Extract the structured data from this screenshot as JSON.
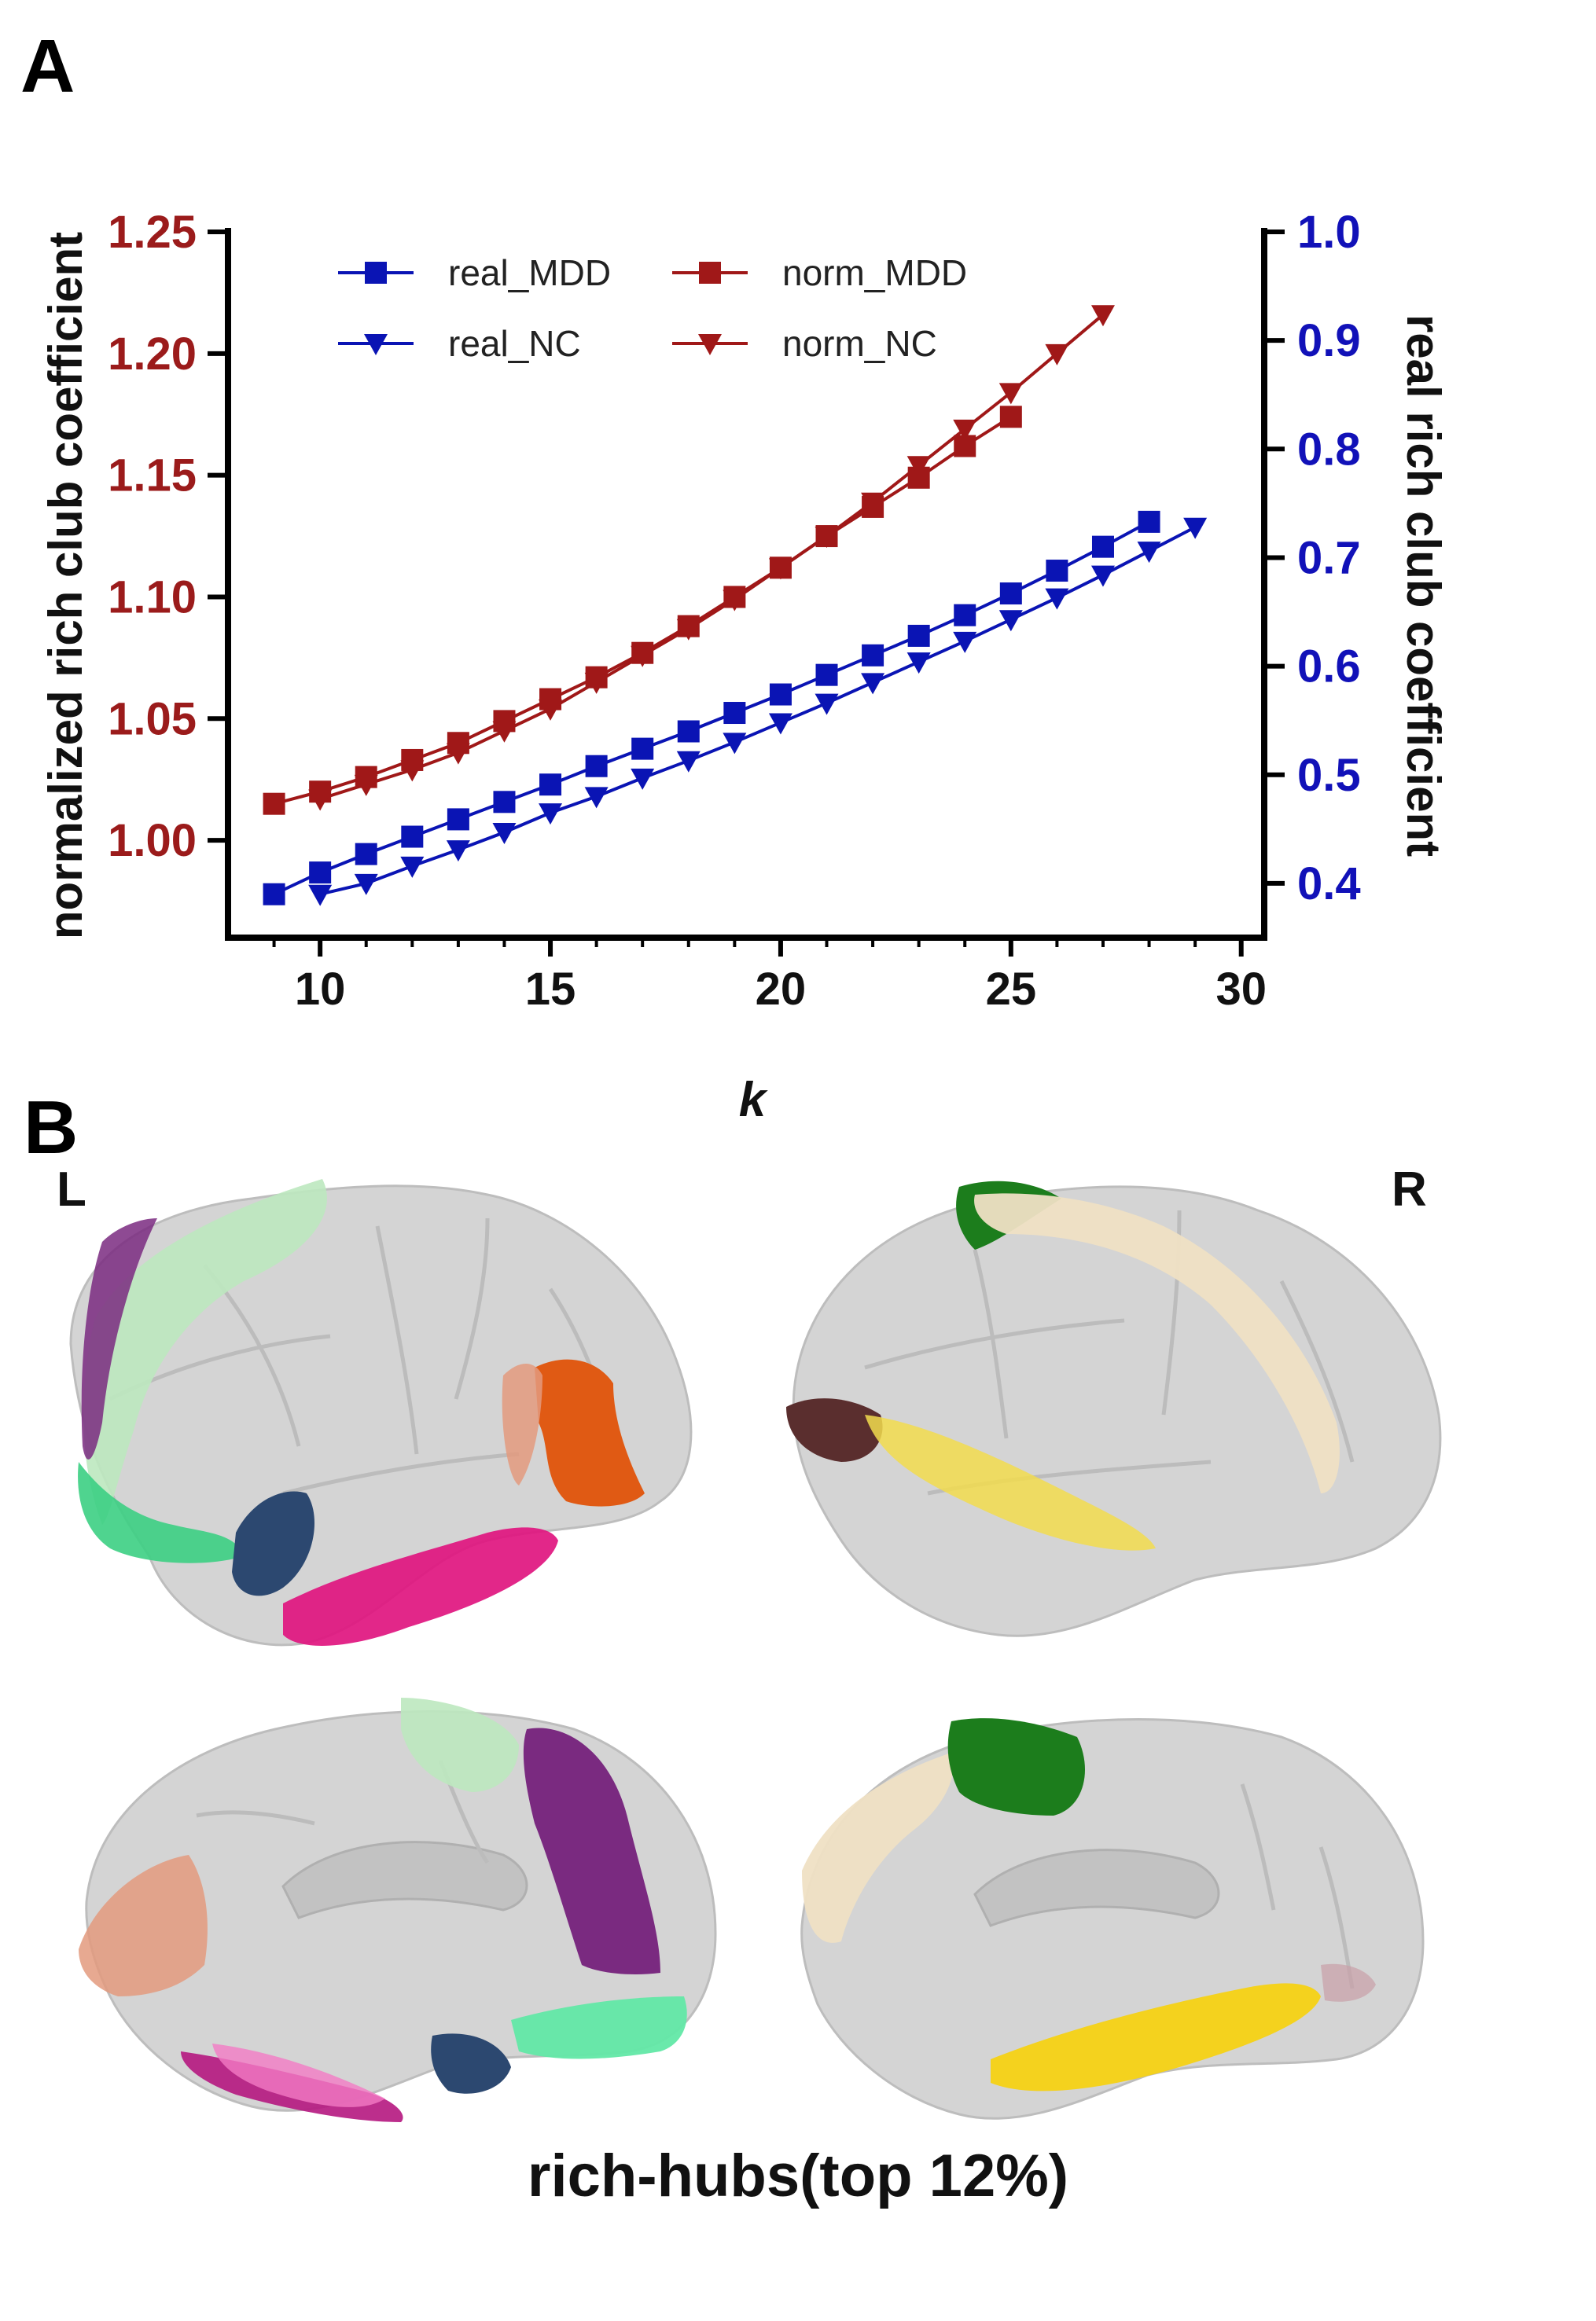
{
  "panel_a_label": "A",
  "panel_b_label": "B",
  "chart_data": {
    "type": "line",
    "xlabel": "k",
    "ylabel_left": "normalized rich club coefficient",
    "ylabel_right": "real rich club coefficient",
    "xlim": [
      8,
      30.5
    ],
    "xticks": [
      "10",
      "15",
      "20",
      "25",
      "30"
    ],
    "ylim_left": [
      0.96,
      1.25
    ],
    "yticks_left": [
      "1.00",
      "1.05",
      "1.10",
      "1.15",
      "1.20",
      "1.25"
    ],
    "ylim_right": [
      0.35,
      1.0
    ],
    "yticks_right": [
      "0.4",
      "0.5",
      "0.6",
      "0.7",
      "0.8",
      "0.9",
      "1.0"
    ],
    "left_color": "#9b1b1b",
    "right_color": "#1111b8",
    "legend": [
      "real_MDD",
      "real_NC",
      "norm_MDD",
      "norm_NC"
    ],
    "series": [
      {
        "name": "real_MDD",
        "axis": "right",
        "marker": "square",
        "color": "#0a14b4",
        "x": [
          9,
          10,
          11,
          12,
          13,
          14,
          15,
          16,
          17,
          18,
          19,
          20,
          21,
          22,
          23,
          24,
          25,
          26,
          27,
          28
        ],
        "values": [
          0.39,
          0.41,
          0.427,
          0.443,
          0.459,
          0.475,
          0.491,
          0.508,
          0.524,
          0.54,
          0.557,
          0.574,
          0.592,
          0.61,
          0.628,
          0.647,
          0.667,
          0.688,
          0.71,
          0.733
        ]
      },
      {
        "name": "real_NC",
        "axis": "right",
        "marker": "triangle-down",
        "color": "#0a14b4",
        "x": [
          10,
          11,
          12,
          13,
          14,
          15,
          16,
          17,
          18,
          19,
          20,
          21,
          22,
          23,
          24,
          25,
          26,
          27,
          28,
          29
        ],
        "values": [
          0.39,
          0.4,
          0.416,
          0.431,
          0.447,
          0.465,
          0.48,
          0.497,
          0.513,
          0.53,
          0.548,
          0.566,
          0.585,
          0.604,
          0.623,
          0.643,
          0.663,
          0.684,
          0.706,
          0.728
        ]
      },
      {
        "name": "norm_MDD",
        "axis": "left",
        "marker": "square",
        "color": "#a01818",
        "x": [
          9,
          10,
          11,
          12,
          13,
          14,
          15,
          16,
          17,
          18,
          19,
          20,
          21,
          22,
          23,
          24,
          25
        ],
        "values": [
          1.015,
          1.02,
          1.026,
          1.033,
          1.04,
          1.049,
          1.058,
          1.067,
          1.077,
          1.088,
          1.1,
          1.112,
          1.125,
          1.137,
          1.149,
          1.162,
          1.174
        ]
      },
      {
        "name": "norm_NC",
        "axis": "left",
        "marker": "triangle-down",
        "color": "#a01818",
        "x": [
          10,
          11,
          12,
          13,
          14,
          15,
          16,
          17,
          18,
          19,
          20,
          21,
          22,
          23,
          24,
          25,
          26,
          27
        ],
        "values": [
          1.017,
          1.023,
          1.029,
          1.036,
          1.045,
          1.054,
          1.065,
          1.076,
          1.087,
          1.099,
          1.112,
          1.125,
          1.139,
          1.154,
          1.169,
          1.184,
          1.2,
          1.216
        ]
      }
    ]
  },
  "brain_labels": {
    "left": "L",
    "right": "R"
  },
  "caption": "rich-hubs(top 12%)"
}
